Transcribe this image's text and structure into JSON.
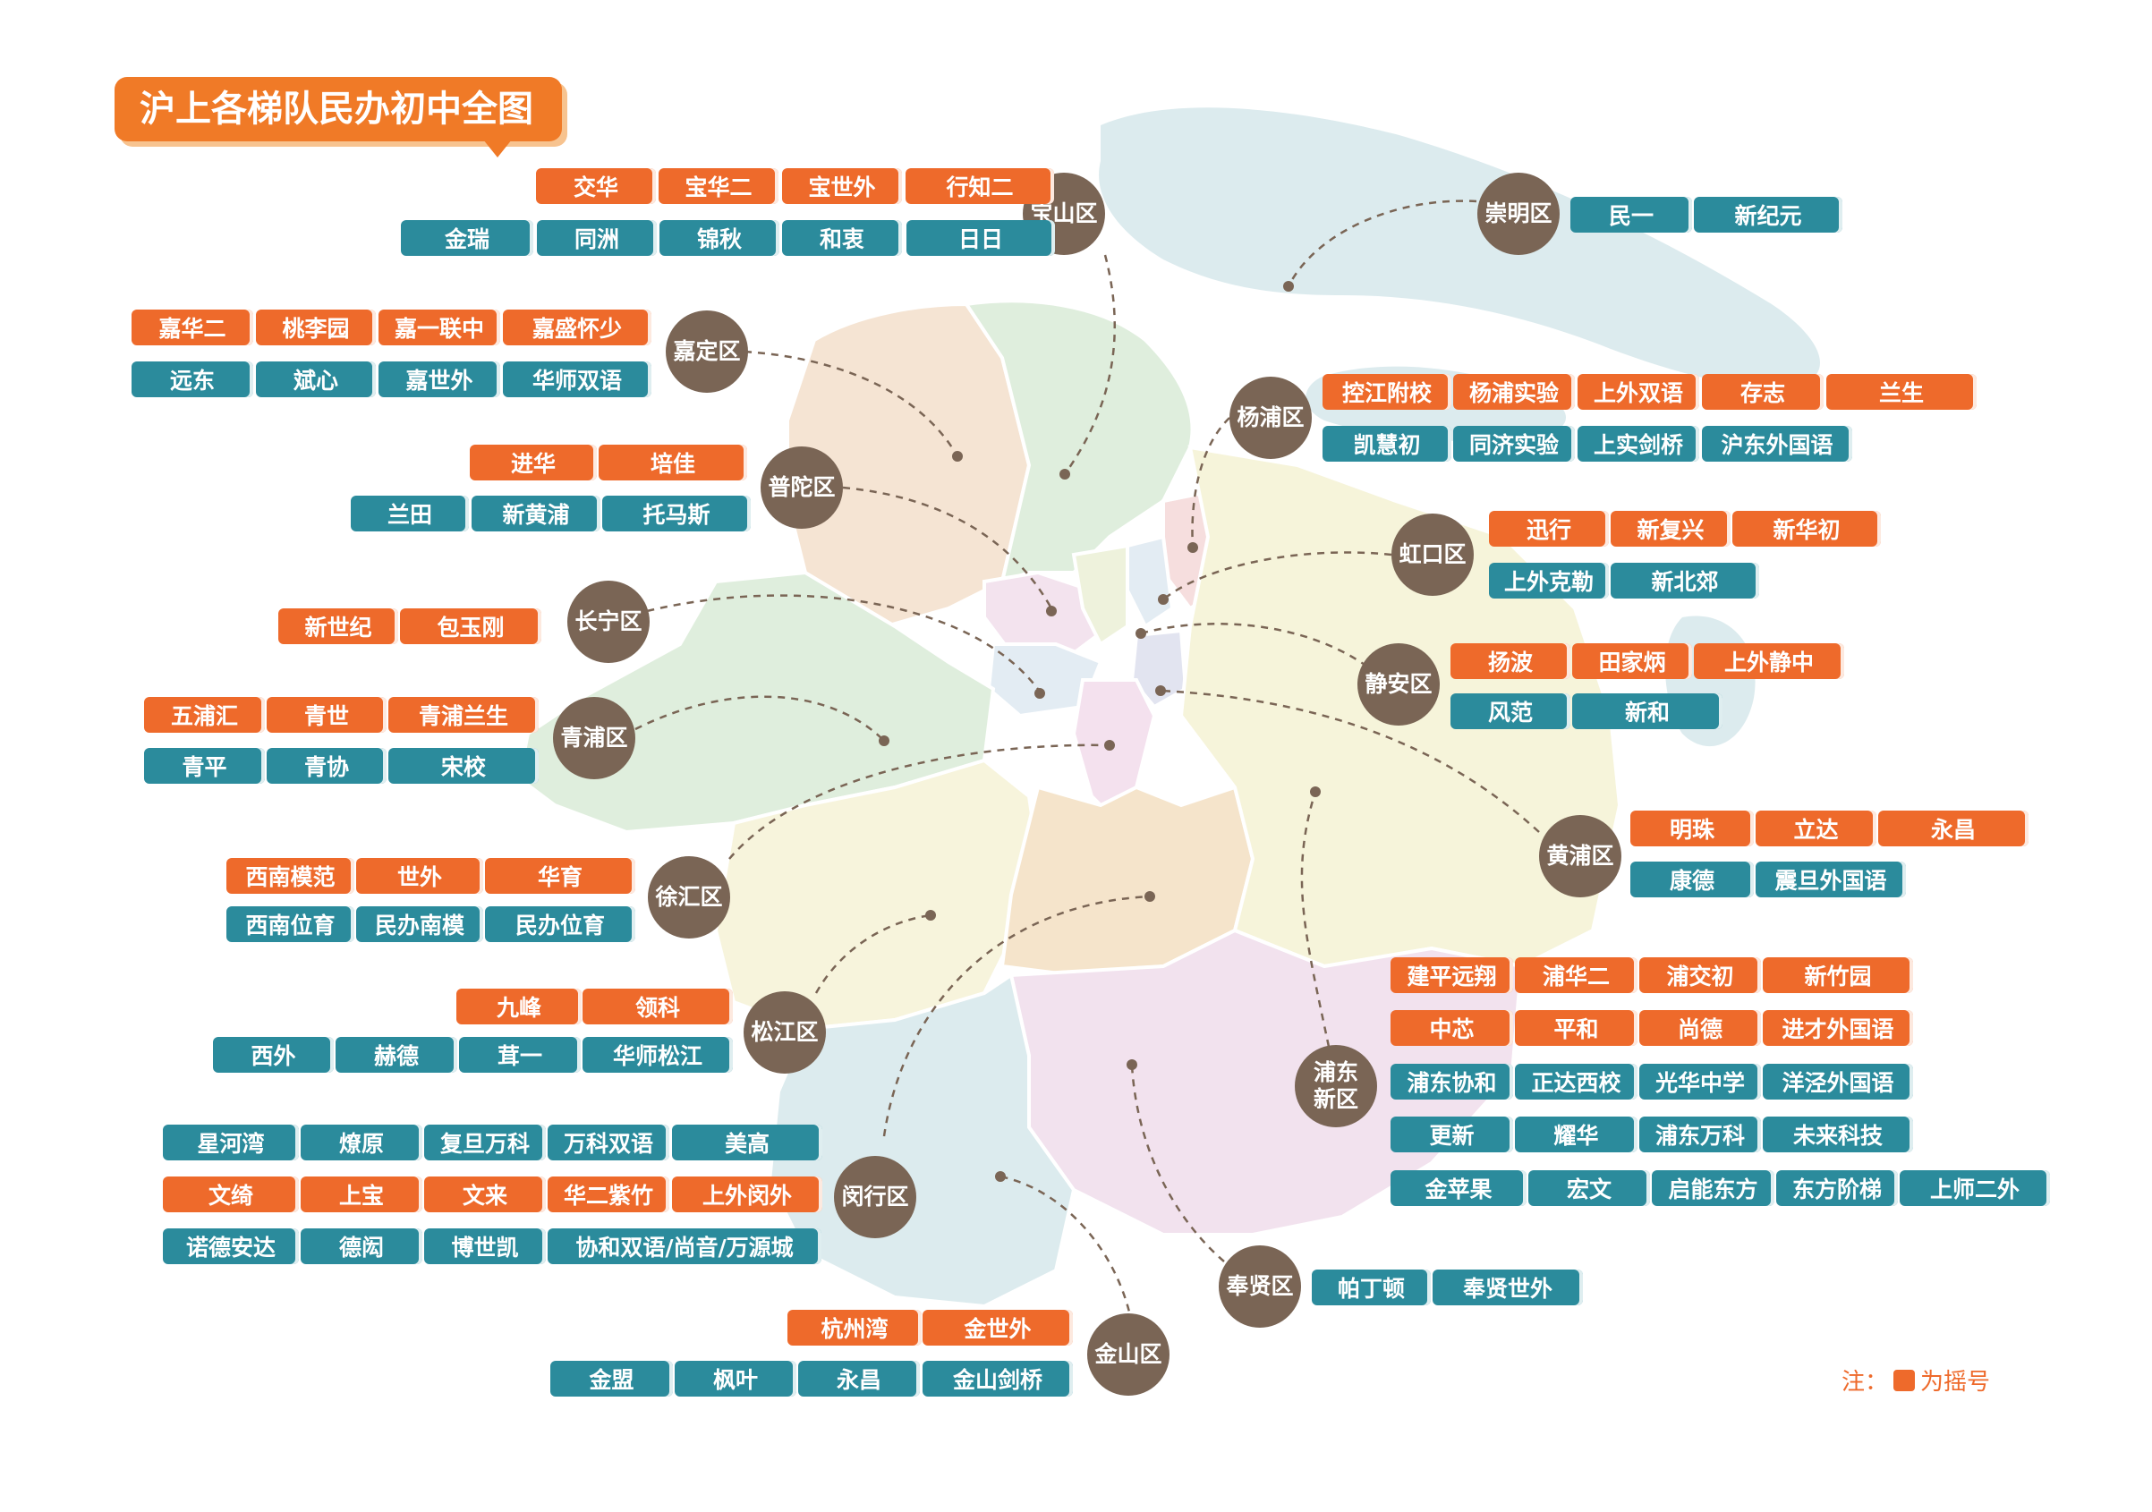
{
  "title": "沪上各梯队民办初中全图",
  "note": {
    "prefix": "注：",
    "suffix": "为摇号"
  },
  "colors": {
    "lottery": "#ee6a2b",
    "other": "#2b8b9c",
    "district": "#7a6555"
  },
  "districts": [
    {
      "name": "宝山区",
      "row1": [
        "交华",
        "宝华二",
        "宝世外",
        "行知二"
      ],
      "row2": [
        "金瑞",
        "同洲",
        "锦秋",
        "和衷",
        "日日"
      ]
    },
    {
      "name": "崇明区",
      "row1": [],
      "row2": [
        "民一",
        "新纪元"
      ]
    },
    {
      "name": "嘉定区",
      "row1": [
        "嘉华二",
        "桃李园",
        "嘉一联中",
        "嘉盛怀少"
      ],
      "row2": [
        "远东",
        "斌心",
        "嘉世外",
        "华师双语"
      ]
    },
    {
      "name": "杨浦区",
      "row1": [
        "控江附校",
        "杨浦实验",
        "上外双语",
        "存志",
        "兰生"
      ],
      "row2": [
        "凯慧初",
        "同济实验",
        "上实剑桥",
        "沪东外国语"
      ]
    },
    {
      "name": "普陀区",
      "row1": [
        "进华",
        "培佳"
      ],
      "row2": [
        "兰田",
        "新黄浦",
        "托马斯"
      ]
    },
    {
      "name": "虹口区",
      "row1": [
        "迅行",
        "新复兴",
        "新华初"
      ],
      "row2": [
        "上外克勒",
        "新北郊"
      ]
    },
    {
      "name": "长宁区",
      "row1": [
        "新世纪",
        "包玉刚"
      ],
      "row2": []
    },
    {
      "name": "静安区",
      "row1": [
        "扬波",
        "田家炳",
        "上外静中"
      ],
      "row2": [
        "风范",
        "新和"
      ]
    },
    {
      "name": "青浦区",
      "row1": [
        "五浦汇",
        "青世",
        "青浦兰生"
      ],
      "row2": [
        "青平",
        "青协",
        "宋校"
      ]
    },
    {
      "name": "黄浦区",
      "row1": [
        "明珠",
        "立达",
        "永昌"
      ],
      "row2": [
        "康德",
        "震旦外国语"
      ]
    },
    {
      "name": "徐汇区",
      "row1": [
        "西南模范",
        "世外",
        "华育"
      ],
      "row2": [
        "西南位育",
        "民办南模",
        "民办位育"
      ]
    },
    {
      "name": "浦东\n新区",
      "row1": [
        "建平远翔",
        "浦华二",
        "浦交初",
        "新竹园"
      ],
      "row2": [
        "中芯",
        "平和",
        "尚德",
        "进才外国语"
      ],
      "row3": [
        "浦东协和",
        "正达西校",
        "光华中学",
        "洋泾外国语"
      ],
      "row4": [
        "更新",
        "耀华",
        "浦东万科",
        "未来科技"
      ],
      "row5": [
        "金苹果",
        "宏文",
        "启能东方",
        "东方阶梯",
        "上师二外"
      ]
    },
    {
      "name": "松江区",
      "row1": [
        "九峰",
        "领科"
      ],
      "row2": [
        "西外",
        "赫德",
        "茸一",
        "华师松江"
      ]
    },
    {
      "name": "闵行区",
      "row1": [
        "星河湾",
        "燎原",
        "复旦万科",
        "万科双语",
        "美高"
      ],
      "row2": [
        "文绮",
        "上宝",
        "文来",
        "华二紫竹",
        "上外闵外"
      ],
      "row3": [
        "诺德安达",
        "德闳",
        "博世凯",
        "协和双语/尚音/万源城"
      ]
    },
    {
      "name": "奉贤区",
      "row1": [],
      "row2": [
        "帕丁顿",
        "奉贤世外"
      ]
    },
    {
      "name": "金山区",
      "row1": [
        "杭州湾",
        "金世外"
      ],
      "row2": [
        "金盟",
        "枫叶",
        "永昌",
        "金山剑桥"
      ]
    }
  ]
}
